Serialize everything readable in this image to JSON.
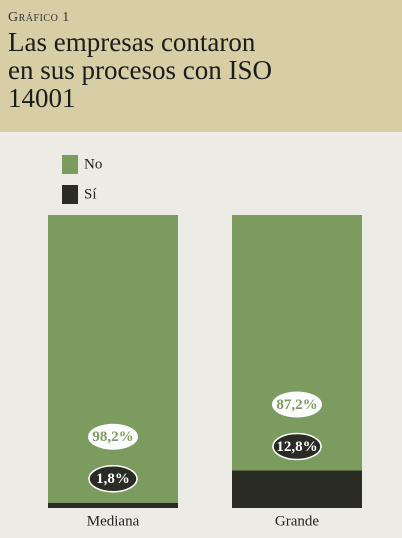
{
  "chart_data": {
    "type": "stacked_bar",
    "supertitle": "Gráfico 1",
    "title": "Las empresas contaron en sus procesos con ISO 14001",
    "categories": [
      "Mediana",
      "Grande"
    ],
    "series": [
      {
        "name": "No",
        "color": "#7b9b5f",
        "values": [
          98.2,
          87.2
        ],
        "value_labels": [
          "98,2%",
          "87,2%"
        ]
      },
      {
        "name": "Sí",
        "color": "#2b2b25",
        "values": [
          1.8,
          12.8
        ],
        "value_labels": [
          "1,8%",
          "12,8%"
        ]
      }
    ],
    "ylim": [
      0,
      100
    ]
  }
}
